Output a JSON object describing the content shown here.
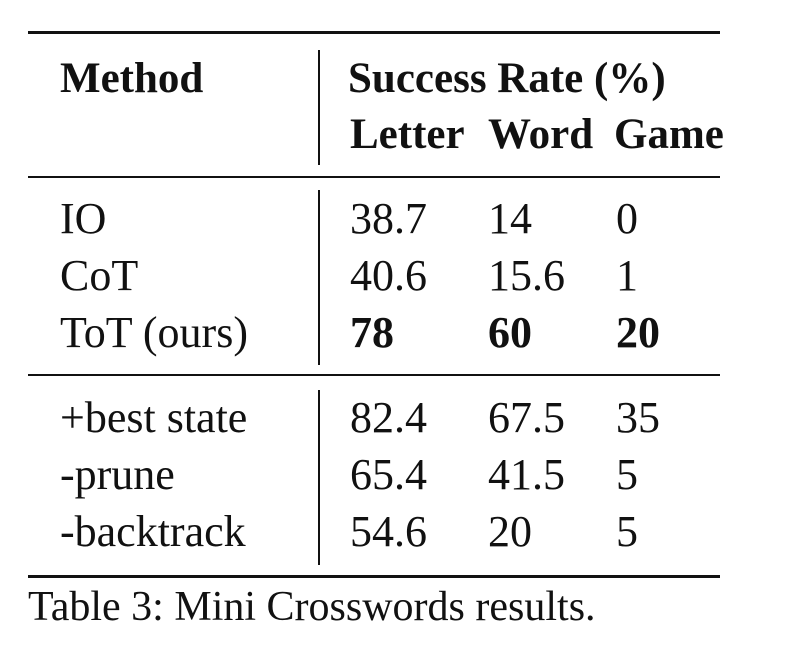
{
  "header": {
    "method": "Method",
    "success_rate": "Success Rate (%)",
    "sub_letter": "Letter",
    "sub_word": "Word",
    "sub_game": "Game"
  },
  "rows": [
    {
      "method": "IO",
      "letter": "38.7",
      "word": "14",
      "game": "0"
    },
    {
      "method": "CoT",
      "letter": "40.6",
      "word": "15.6",
      "game": "1"
    },
    {
      "method": "ToT (ours)",
      "letter": "78",
      "word": "60",
      "game": "20"
    },
    {
      "method": "+best state",
      "letter": "82.4",
      "word": "67.5",
      "game": "35"
    },
    {
      "method": "-prune",
      "letter": "65.4",
      "word": "41.5",
      "game": "5"
    },
    {
      "method": "-backtrack",
      "letter": "54.6",
      "word": "20",
      "game": "5"
    }
  ],
  "caption": "Table 3: Mini Crosswords results."
}
